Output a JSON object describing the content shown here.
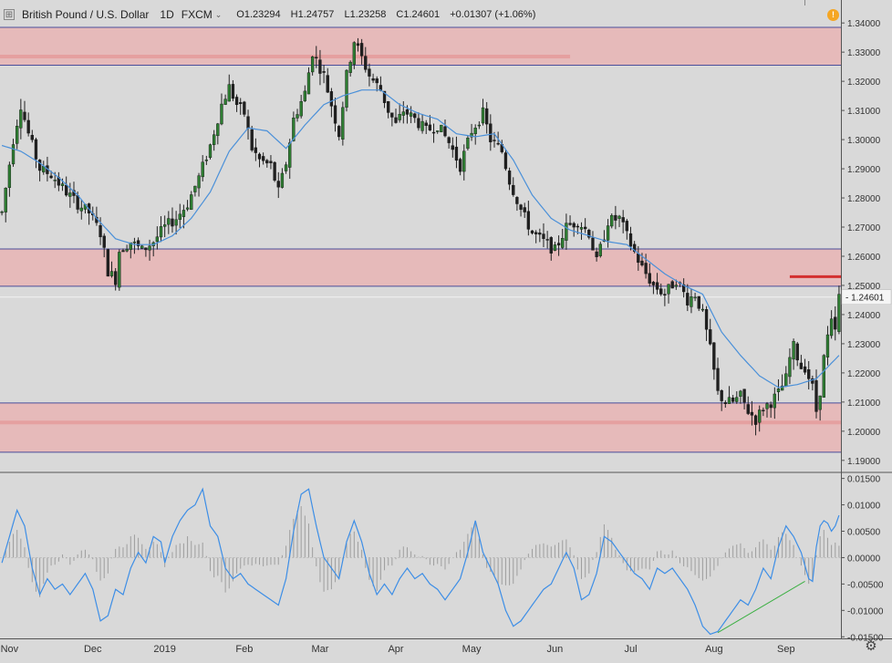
{
  "header": {
    "symbol": "British Pound / U.S. Dollar",
    "interval": "1D",
    "exchange": "FXCM",
    "open_label": "O",
    "open": "1.23294",
    "high_label": "H",
    "high": "1.24757",
    "low_label": "L",
    "low": "1.23258",
    "close_label": "C",
    "close": "1.24601",
    "change": "+0.01307 (+1.06%)",
    "chevron": "⌄"
  },
  "alert_icon": "!",
  "price_axis": {
    "ticks": [
      "1.34000",
      "1.33000",
      "1.32000",
      "1.31000",
      "1.30000",
      "1.29000",
      "1.28000",
      "1.27000",
      "1.26000",
      "1.25000",
      "1.24000",
      "1.23000",
      "1.22000",
      "1.21000",
      "1.20000",
      "1.19000"
    ],
    "tick_values": [
      1.34,
      1.33,
      1.32,
      1.31,
      1.3,
      1.29,
      1.28,
      1.27,
      1.26,
      1.25,
      1.24,
      1.23,
      1.22,
      1.21,
      1.2,
      1.19
    ],
    "last_price_label": "1.24601",
    "last_price": 1.24601,
    "range": [
      1.1865,
      1.3435
    ]
  },
  "oscillator_axis": {
    "ticks": [
      "0.01500",
      "0.01000",
      "0.00500",
      "0.00000",
      "-0.00500",
      "-0.01000",
      "-0.01500"
    ],
    "tick_values": [
      0.015,
      0.01,
      0.005,
      0,
      -0.005,
      -0.01,
      -0.015
    ],
    "range": [
      -0.0153,
      0.0158
    ]
  },
  "time_axis": {
    "labels": [
      "Nov",
      "Dec",
      "2019",
      "Feb",
      "Mar",
      "Apr",
      "May",
      "Jun",
      "Jul",
      "Aug",
      "Sep"
    ],
    "label_bar_index": [
      2,
      24,
      43,
      64,
      84,
      104,
      124,
      146,
      166,
      188,
      207
    ]
  },
  "zones": [
    {
      "top": 1.3385,
      "bottom": 1.3255
    },
    {
      "top": 1.2625,
      "bottom": 1.2497
    },
    {
      "top": 1.2097,
      "bottom": 1.1928
    }
  ],
  "zone_midlines": [
    {
      "value": 1.3285,
      "from_bar": 0,
      "to_bar": 150
    },
    {
      "value": 1.203,
      "from_bar": 0,
      "to_bar": 228
    }
  ],
  "resistance_marker": {
    "value": 1.253,
    "from_bar": 208,
    "to_bar": 228
  },
  "divergence_line": {
    "from": {
      "bar": 189,
      "value": -0.0142
    },
    "to": {
      "bar": 212,
      "value": -0.0045
    }
  },
  "colors": {
    "background": "#d9d9d9",
    "zone_fill": "#e8b4b4",
    "zone_border": "#4a4e9a",
    "zone_midline": "#e59a9a",
    "candle_up": "#2e7d32",
    "candle_down": "#202020",
    "ma_line": "#4a90d9",
    "osc_line": "#3d8ee6",
    "hist": "#9e9e9e",
    "resistance_marker": "#d32f2f",
    "divergence": "#3cb043",
    "last_price_line": "#f2f2f2"
  },
  "chart_data": {
    "type": "candlestick",
    "title": "British Pound / U.S. Dollar",
    "interval": "1D",
    "bars": 222,
    "ylim": [
      1.1865,
      1.3435
    ],
    "anchors": [
      [
        0,
        1.275
      ],
      [
        3,
        1.3
      ],
      [
        5,
        1.312
      ],
      [
        7,
        1.302
      ],
      [
        10,
        1.29
      ],
      [
        13,
        1.288
      ],
      [
        17,
        1.282
      ],
      [
        20,
        1.278
      ],
      [
        23,
        1.275
      ],
      [
        26,
        1.268
      ],
      [
        28,
        1.255
      ],
      [
        30,
        1.252
      ],
      [
        31,
        1.262
      ],
      [
        34,
        1.265
      ],
      [
        37,
        1.262
      ],
      [
        40,
        1.265
      ],
      [
        43,
        1.27
      ],
      [
        46,
        1.273
      ],
      [
        49,
        1.278
      ],
      [
        52,
        1.287
      ],
      [
        55,
        1.298
      ],
      [
        58,
        1.312
      ],
      [
        60,
        1.318
      ],
      [
        62,
        1.312
      ],
      [
        64,
        1.309
      ],
      [
        66,
        1.297
      ],
      [
        68,
        1.293
      ],
      [
        71,
        1.291
      ],
      [
        73,
        1.282
      ],
      [
        75,
        1.292
      ],
      [
        77,
        1.307
      ],
      [
        80,
        1.316
      ],
      [
        82,
        1.33
      ],
      [
        85,
        1.322
      ],
      [
        87,
        1.312
      ],
      [
        89,
        1.302
      ],
      [
        91,
        1.322
      ],
      [
        93,
        1.334
      ],
      [
        95,
        1.328
      ],
      [
        97,
        1.322
      ],
      [
        100,
        1.317
      ],
      [
        102,
        1.31
      ],
      [
        104,
        1.305
      ],
      [
        106,
        1.31
      ],
      [
        109,
        1.307
      ],
      [
        112,
        1.303
      ],
      [
        115,
        1.305
      ],
      [
        118,
        1.299
      ],
      [
        121,
        1.291
      ],
      [
        124,
        1.303
      ],
      [
        127,
        1.309
      ],
      [
        129,
        1.3
      ],
      [
        132,
        1.296
      ],
      [
        134,
        1.286
      ],
      [
        137,
        1.276
      ],
      [
        140,
        1.268
      ],
      [
        143,
        1.265
      ],
      [
        146,
        1.262
      ],
      [
        149,
        1.27
      ],
      [
        152,
        1.272
      ],
      [
        155,
        1.268
      ],
      [
        157,
        1.258
      ],
      [
        160,
        1.272
      ],
      [
        163,
        1.273
      ],
      [
        166,
        1.264
      ],
      [
        169,
        1.256
      ],
      [
        172,
        1.25
      ],
      [
        175,
        1.247
      ],
      [
        178,
        1.252
      ],
      [
        181,
        1.245
      ],
      [
        183,
        1.247
      ],
      [
        185,
        1.24
      ],
      [
        187,
        1.228
      ],
      [
        189,
        1.213
      ],
      [
        191,
        1.21
      ],
      [
        193,
        1.21
      ],
      [
        195,
        1.212
      ],
      [
        197,
        1.207
      ],
      [
        199,
        1.204
      ],
      [
        201,
        1.208
      ],
      [
        203,
        1.21
      ],
      [
        205,
        1.213
      ],
      [
        207,
        1.218
      ],
      [
        208,
        1.225
      ],
      [
        209,
        1.229
      ],
      [
        211,
        1.222
      ],
      [
        212,
        1.222
      ],
      [
        214,
        1.215
      ],
      [
        215,
        1.207
      ],
      [
        216,
        1.214
      ],
      [
        217,
        1.225
      ],
      [
        218,
        1.232
      ],
      [
        219,
        1.237
      ],
      [
        220,
        1.234
      ],
      [
        221,
        1.246
      ]
    ],
    "ma_anchors": [
      [
        0,
        1.298
      ],
      [
        5,
        1.296
      ],
      [
        10,
        1.292
      ],
      [
        15,
        1.287
      ],
      [
        20,
        1.281
      ],
      [
        25,
        1.273
      ],
      [
        30,
        1.266
      ],
      [
        35,
        1.264
      ],
      [
        40,
        1.264
      ],
      [
        45,
        1.267
      ],
      [
        50,
        1.273
      ],
      [
        55,
        1.282
      ],
      [
        60,
        1.296
      ],
      [
        65,
        1.304
      ],
      [
        70,
        1.303
      ],
      [
        75,
        1.297
      ],
      [
        80,
        1.305
      ],
      [
        85,
        1.312
      ],
      [
        90,
        1.315
      ],
      [
        95,
        1.317
      ],
      [
        100,
        1.317
      ],
      [
        105,
        1.312
      ],
      [
        110,
        1.309
      ],
      [
        115,
        1.307
      ],
      [
        120,
        1.302
      ],
      [
        125,
        1.301
      ],
      [
        130,
        1.302
      ],
      [
        135,
        1.293
      ],
      [
        140,
        1.281
      ],
      [
        145,
        1.273
      ],
      [
        150,
        1.269
      ],
      [
        155,
        1.267
      ],
      [
        160,
        1.265
      ],
      [
        165,
        1.264
      ],
      [
        170,
        1.259
      ],
      [
        175,
        1.254
      ],
      [
        180,
        1.25
      ],
      [
        185,
        1.247
      ],
      [
        190,
        1.234
      ],
      [
        195,
        1.226
      ],
      [
        200,
        1.219
      ],
      [
        205,
        1.215
      ],
      [
        210,
        1.216
      ],
      [
        215,
        1.218
      ],
      [
        221,
        1.226
      ]
    ],
    "oscillator": {
      "name": "",
      "ylim": [
        -0.0153,
        0.0158
      ],
      "anchors": [
        [
          0,
          -0.001
        ],
        [
          2,
          0.004
        ],
        [
          4,
          0.009
        ],
        [
          6,
          0.006
        ],
        [
          8,
          -0.002
        ],
        [
          10,
          -0.007
        ],
        [
          12,
          -0.004
        ],
        [
          14,
          -0.006
        ],
        [
          16,
          -0.005
        ],
        [
          18,
          -0.007
        ],
        [
          20,
          -0.005
        ],
        [
          22,
          -0.003
        ],
        [
          24,
          -0.006
        ],
        [
          26,
          -0.012
        ],
        [
          28,
          -0.011
        ],
        [
          30,
          -0.006
        ],
        [
          32,
          -0.007
        ],
        [
          34,
          -0.002
        ],
        [
          36,
          0.001
        ],
        [
          38,
          -0.001
        ],
        [
          40,
          0.004
        ],
        [
          42,
          0.003
        ],
        [
          43,
          -0.001
        ],
        [
          45,
          0.004
        ],
        [
          47,
          0.007
        ],
        [
          49,
          0.009
        ],
        [
          51,
          0.01
        ],
        [
          53,
          0.013
        ],
        [
          55,
          0.006
        ],
        [
          57,
          0.004
        ],
        [
          59,
          -0.002
        ],
        [
          61,
          -0.004
        ],
        [
          63,
          -0.003
        ],
        [
          65,
          -0.005
        ],
        [
          67,
          -0.006
        ],
        [
          69,
          -0.007
        ],
        [
          71,
          -0.008
        ],
        [
          73,
          -0.009
        ],
        [
          75,
          -0.004
        ],
        [
          77,
          0.005
        ],
        [
          79,
          0.012
        ],
        [
          81,
          0.013
        ],
        [
          83,
          0.006
        ],
        [
          85,
          0.0
        ],
        [
          87,
          -0.002
        ],
        [
          89,
          -0.004
        ],
        [
          91,
          0.003
        ],
        [
          93,
          0.007
        ],
        [
          95,
          0.003
        ],
        [
          97,
          -0.003
        ],
        [
          99,
          -0.007
        ],
        [
          101,
          -0.005
        ],
        [
          103,
          -0.007
        ],
        [
          105,
          -0.004
        ],
        [
          107,
          -0.002
        ],
        [
          109,
          -0.004
        ],
        [
          111,
          -0.003
        ],
        [
          113,
          -0.005
        ],
        [
          115,
          -0.006
        ],
        [
          117,
          -0.008
        ],
        [
          119,
          -0.006
        ],
        [
          121,
          -0.004
        ],
        [
          123,
          0.001
        ],
        [
          125,
          0.007
        ],
        [
          127,
          0.001
        ],
        [
          129,
          -0.002
        ],
        [
          131,
          -0.005
        ],
        [
          133,
          -0.01
        ],
        [
          135,
          -0.013
        ],
        [
          137,
          -0.012
        ],
        [
          139,
          -0.01
        ],
        [
          141,
          -0.008
        ],
        [
          143,
          -0.006
        ],
        [
          145,
          -0.005
        ],
        [
          147,
          -0.002
        ],
        [
          149,
          0.001
        ],
        [
          151,
          -0.002
        ],
        [
          153,
          -0.008
        ],
        [
          155,
          -0.007
        ],
        [
          157,
          -0.003
        ],
        [
          159,
          0.004
        ],
        [
          161,
          0.003
        ],
        [
          163,
          0.001
        ],
        [
          165,
          -0.001
        ],
        [
          167,
          -0.003
        ],
        [
          169,
          -0.004
        ],
        [
          171,
          -0.006
        ],
        [
          173,
          -0.002
        ],
        [
          175,
          -0.003
        ],
        [
          177,
          -0.002
        ],
        [
          179,
          -0.004
        ],
        [
          181,
          -0.006
        ],
        [
          183,
          -0.009
        ],
        [
          185,
          -0.013
        ],
        [
          187,
          -0.0145
        ],
        [
          189,
          -0.014
        ],
        [
          191,
          -0.012
        ],
        [
          193,
          -0.01
        ],
        [
          195,
          -0.008
        ],
        [
          197,
          -0.009
        ],
        [
          199,
          -0.006
        ],
        [
          201,
          -0.002
        ],
        [
          203,
          -0.004
        ],
        [
          205,
          0.002
        ],
        [
          207,
          0.006
        ],
        [
          209,
          0.004
        ],
        [
          211,
          0.001
        ],
        [
          213,
          -0.004
        ],
        [
          214,
          -0.0045
        ],
        [
          215,
          0.002
        ],
        [
          216,
          0.006
        ],
        [
          217,
          0.007
        ],
        [
          218,
          0.0065
        ],
        [
          219,
          0.005
        ],
        [
          220,
          0.006
        ],
        [
          221,
          0.008
        ]
      ]
    }
  }
}
